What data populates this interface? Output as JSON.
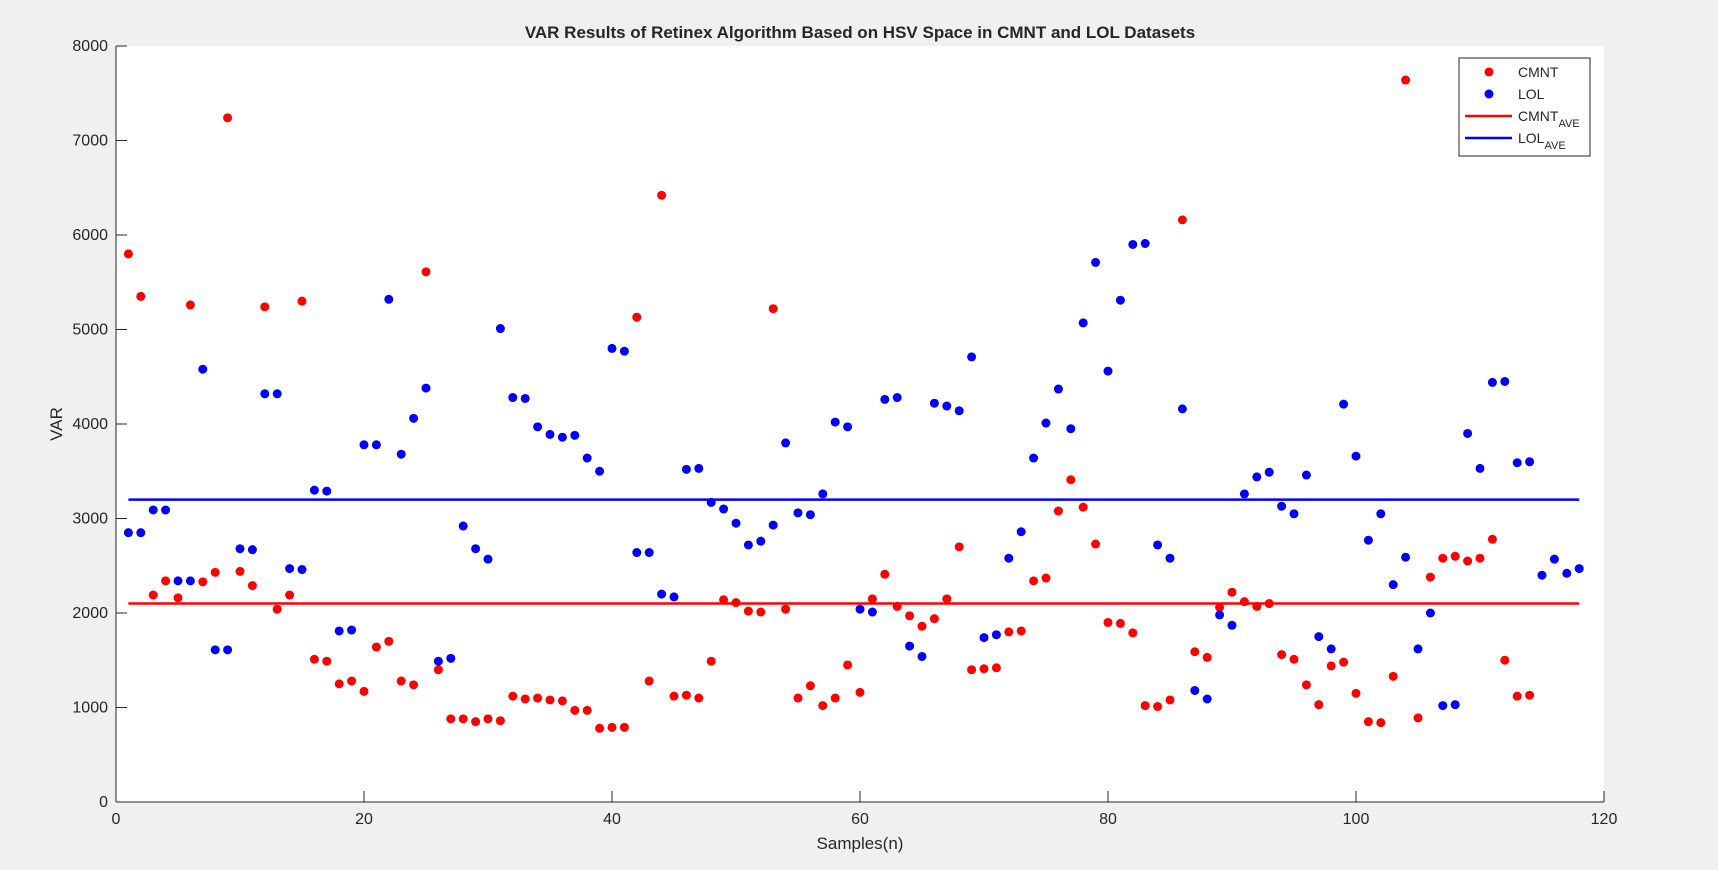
{
  "chart_data": {
    "type": "scatter",
    "title": "VAR Results of Retinex Algorithm Based on HSV Space in CMNT and LOL Datasets",
    "xlabel": "Samples(n)",
    "ylabel": "VAR",
    "xlim": [
      0,
      120
    ],
    "ylim": [
      0,
      8000
    ],
    "xticks": [
      0,
      20,
      40,
      60,
      80,
      100,
      120
    ],
    "yticks": [
      0,
      1000,
      2000,
      3000,
      4000,
      5000,
      6000,
      7000,
      8000
    ],
    "grid": false,
    "legend_position": "top-right",
    "legend": [
      {
        "main": "CMNT",
        "sub": "",
        "kind": "marker",
        "color": "#ff0000"
      },
      {
        "main": "LOL",
        "sub": "",
        "kind": "marker",
        "color": "#0000ff"
      },
      {
        "main": "CMNT",
        "sub": "AVE",
        "kind": "line",
        "color": "#ff0000"
      },
      {
        "main": "LOL",
        "sub": "AVE",
        "kind": "line",
        "color": "#0000ff"
      }
    ],
    "series": [
      {
        "name": "CMNT",
        "color": "#ff0000",
        "x": [
          1,
          2,
          3,
          4,
          5,
          6,
          7,
          8,
          9,
          10,
          11,
          12,
          13,
          14,
          15,
          16,
          17,
          18,
          19,
          20,
          21,
          22,
          23,
          24,
          25,
          26,
          27,
          28,
          29,
          30,
          31,
          32,
          33,
          34,
          35,
          36,
          37,
          38,
          39,
          40,
          41,
          42,
          43,
          44,
          45,
          46,
          47,
          48,
          49,
          50,
          51,
          52,
          53,
          54,
          55,
          56,
          57,
          58,
          59,
          60,
          61,
          62,
          63,
          64,
          65,
          66,
          67,
          68,
          69,
          70,
          71,
          72,
          73,
          74,
          75,
          76,
          77,
          78,
          79,
          80,
          81,
          82,
          83,
          84,
          85,
          86,
          87,
          88,
          89,
          90,
          91,
          92,
          93,
          94,
          95,
          96,
          97,
          98,
          99,
          100,
          101,
          102,
          103,
          104,
          105,
          106,
          107,
          108,
          109,
          110,
          111,
          112,
          113,
          114
        ],
        "y": [
          5800,
          5350,
          2190,
          2340,
          2160,
          5260,
          2330,
          2430,
          7240,
          2440,
          2290,
          5240,
          2040,
          2190,
          5300,
          1510,
          1490,
          1250,
          1280,
          1170,
          1640,
          1700,
          1280,
          1240,
          5610,
          1400,
          880,
          880,
          850,
          880,
          860,
          1120,
          1090,
          1100,
          1080,
          1070,
          970,
          970,
          780,
          790,
          790,
          5130,
          1280,
          6420,
          1120,
          1130,
          1100,
          1490,
          2140,
          2110,
          2020,
          2010,
          5220,
          2040,
          1100,
          1230,
          1020,
          1100,
          1450,
          1160,
          2150,
          2410,
          2070,
          1970,
          1860,
          1940,
          2150,
          2700,
          1400,
          1410,
          1420,
          1800,
          1810,
          2340,
          2370,
          3080,
          3410,
          3120,
          2730,
          1900,
          1890,
          1790,
          1020,
          1010,
          1080,
          6160,
          1590,
          1530,
          2060,
          2220,
          2120,
          2070,
          2100,
          1560,
          1510,
          1240,
          1030,
          1440,
          1480,
          1150,
          850,
          840,
          1330,
          7640,
          890,
          2380,
          2580,
          2600,
          2550,
          2580,
          2780,
          1500,
          1120,
          1130
        ]
      },
      {
        "name": "LOL",
        "color": "#0000ff",
        "x": [
          1,
          2,
          3,
          4,
          5,
          6,
          7,
          8,
          9,
          10,
          11,
          12,
          13,
          14,
          15,
          16,
          17,
          18,
          19,
          20,
          21,
          22,
          23,
          24,
          25,
          26,
          27,
          28,
          29,
          30,
          31,
          32,
          33,
          34,
          35,
          36,
          37,
          38,
          39,
          40,
          41,
          42,
          43,
          44,
          45,
          46,
          47,
          48,
          49,
          50,
          51,
          52,
          53,
          54,
          55,
          56,
          57,
          58,
          59,
          60,
          61,
          62,
          63,
          64,
          65,
          66,
          67,
          68,
          69,
          70,
          71,
          72,
          73,
          74,
          75,
          76,
          77,
          78,
          79,
          80,
          81,
          82,
          83,
          84,
          85,
          86,
          87,
          88,
          89,
          90,
          91,
          92,
          93,
          94,
          95,
          96,
          97,
          98,
          99,
          100,
          101,
          102,
          103,
          104,
          105,
          106,
          107,
          108,
          109,
          110,
          111,
          112,
          113,
          114,
          115,
          116,
          117,
          118
        ],
        "y": [
          2850,
          2850,
          3090,
          3090,
          2340,
          2340,
          4580,
          1610,
          1610,
          2680,
          2670,
          4320,
          4320,
          2470,
          2460,
          3300,
          3290,
          1810,
          1820,
          3780,
          3780,
          5320,
          3680,
          4060,
          4380,
          1490,
          1520,
          2920,
          2680,
          2570,
          5010,
          4280,
          4270,
          3970,
          3890,
          3860,
          3880,
          3640,
          3500,
          4800,
          4770,
          2640,
          2640,
          2200,
          2170,
          3520,
          3530,
          3170,
          3100,
          2950,
          2720,
          2760,
          2930,
          3800,
          3060,
          3040,
          3260,
          4020,
          3970,
          2040,
          2010,
          4260,
          4280,
          1650,
          1540,
          4220,
          4190,
          4140,
          4710,
          1740,
          1770,
          2580,
          2860,
          3640,
          4010,
          4370,
          3950,
          5070,
          5710,
          4560,
          5310,
          5900,
          5910,
          2720,
          2580,
          4160,
          1180,
          1090,
          1980,
          1870,
          3260,
          3440,
          3490,
          3130,
          3050,
          3460,
          1750,
          1620,
          4210,
          3660,
          2770,
          3050,
          2300,
          2590,
          1620,
          2000,
          1020,
          1030,
          3900,
          3530,
          4440,
          4450,
          3590,
          3600,
          2400,
          2570,
          2420,
          2470
        ]
      },
      {
        "name": "CMNT",
        "sub": "AVE",
        "type": "line",
        "color": "#ff0000",
        "x": [
          1,
          118
        ],
        "y": [
          2100,
          2100
        ]
      },
      {
        "name": "LOL",
        "sub": "AVE",
        "type": "line",
        "color": "#0000ff",
        "x": [
          1,
          118
        ],
        "y": [
          3200,
          3200
        ]
      }
    ]
  }
}
